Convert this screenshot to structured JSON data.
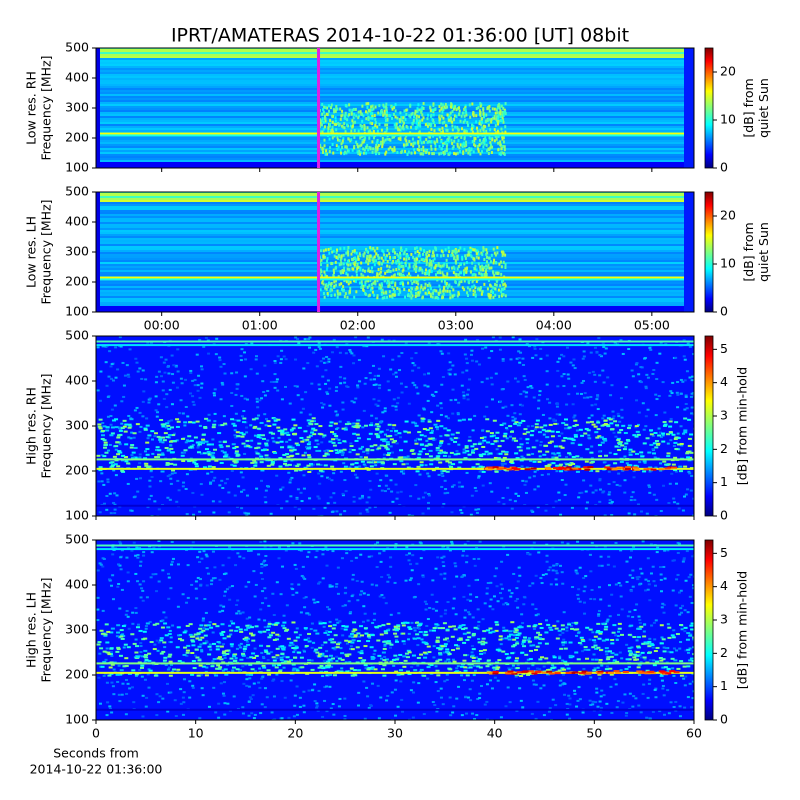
{
  "chart_data": [
    {
      "type": "heatmap",
      "title": "IPRT/AMATERAS 2014-10-22 01:36:00 [UT]   08bit",
      "ylabel": [
        "Low res. RH",
        "Frequency [MHz]"
      ],
      "xlim": [
        -0.67,
        5.43
      ],
      "xticks": [
        {
          "value": 0,
          "label": "00:00"
        },
        {
          "value": 1,
          "label": "01:00"
        },
        {
          "value": 2,
          "label": "02:00"
        },
        {
          "value": 3,
          "label": "03:00"
        },
        {
          "value": 4,
          "label": "04:00"
        },
        {
          "value": 5,
          "label": "05:00"
        }
      ],
      "show_xticklabels": false,
      "ylim": [
        100,
        500
      ],
      "yticks": [
        100,
        200,
        300,
        400,
        500
      ],
      "marker": {
        "x": 1.6,
        "color": "#e020e0"
      },
      "colormap": "jet",
      "clim": [
        0,
        25
      ],
      "cticks": [
        0,
        10,
        20
      ],
      "clabel": [
        "[dB] from",
        "quiet Sun"
      ]
    },
    {
      "type": "heatmap",
      "ylabel": [
        "Low res. LH",
        "Frequency [MHz]"
      ],
      "xlim": [
        -0.67,
        5.43
      ],
      "xticks": [
        {
          "value": 0,
          "label": "00:00"
        },
        {
          "value": 1,
          "label": "01:00"
        },
        {
          "value": 2,
          "label": "02:00"
        },
        {
          "value": 3,
          "label": "03:00"
        },
        {
          "value": 4,
          "label": "04:00"
        },
        {
          "value": 5,
          "label": "05:00"
        }
      ],
      "show_xticklabels": true,
      "ylim": [
        100,
        500
      ],
      "yticks": [
        100,
        200,
        300,
        400,
        500
      ],
      "marker": {
        "x": 1.6,
        "color": "#e020e0"
      },
      "colormap": "jet",
      "clim": [
        0,
        25
      ],
      "cticks": [
        0,
        10,
        20
      ],
      "clabel": [
        "[dB] from",
        "quiet Sun"
      ]
    },
    {
      "type": "heatmap",
      "ylabel": [
        "High res. RH",
        "Frequency [MHz]"
      ],
      "xlim": [
        0,
        60
      ],
      "xticks": [
        0,
        10,
        20,
        30,
        40,
        50,
        60
      ],
      "show_xticklabels": false,
      "ylim": [
        100,
        500
      ],
      "yticks": [
        100,
        200,
        300,
        400,
        500
      ],
      "colormap": "jet",
      "clim": [
        0,
        5.4
      ],
      "cticks": [
        0,
        1,
        2,
        3,
        4,
        5
      ],
      "clabel": [
        "[dB] from min-hold"
      ]
    },
    {
      "type": "heatmap",
      "ylabel": [
        "High res. LH",
        "Frequency [MHz]"
      ],
      "xlim": [
        0,
        60
      ],
      "xticks": [
        0,
        10,
        20,
        30,
        40,
        50,
        60
      ],
      "show_xticklabels": true,
      "xlabel": [
        "Seconds from",
        "2014-10-22 01:36:00"
      ],
      "ylim": [
        100,
        500
      ],
      "yticks": [
        100,
        200,
        300,
        400,
        500
      ],
      "colormap": "jet",
      "clim": [
        0,
        5.4
      ],
      "cticks": [
        0,
        1,
        2,
        3,
        4,
        5
      ],
      "clabel": [
        "[dB] from min-hold"
      ]
    }
  ]
}
